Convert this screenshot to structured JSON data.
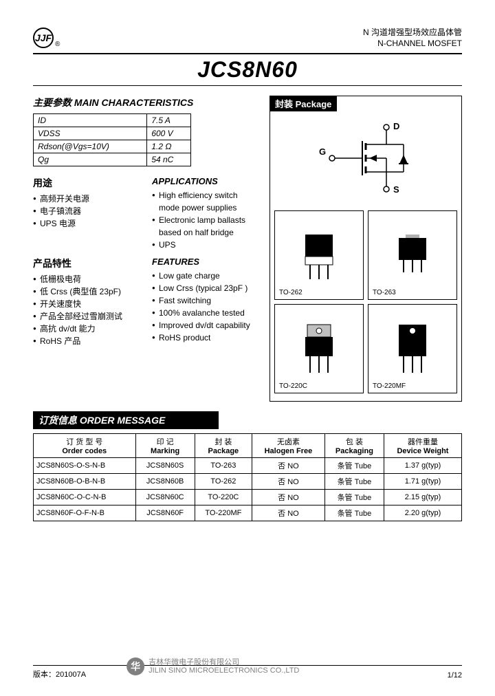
{
  "header": {
    "logo_text": "JJF",
    "reg": "®",
    "subtitle_cn": "N 沟道增强型场效应晶体管",
    "subtitle_en": "N-CHANNEL MOSFET"
  },
  "title": "JCS8N60",
  "main_chars": {
    "heading": "主要参数    MAIN  CHARACTERISTICS",
    "rows": [
      {
        "param": "ID",
        "value": "7.5 A"
      },
      {
        "param": "VDSS",
        "value": "600 V"
      },
      {
        "param": "Rdson(@Vgs=10V)",
        "value": "1.2 Ω"
      },
      {
        "param": "Qg",
        "value": "54 nC"
      }
    ]
  },
  "applications": {
    "cn_heading": "用途",
    "en_heading": "APPLICATIONS",
    "cn_items": [
      "高频开关电源",
      "电子镇流器",
      "UPS 电源"
    ],
    "en_items": [
      "High efficiency switch mode power supplies",
      "Electronic lamp ballasts based on half bridge",
      "UPS"
    ]
  },
  "features": {
    "cn_heading": "产品特性",
    "en_heading": "FEATURES",
    "cn_items": [
      "低栅极电荷",
      "低 Crss (典型值 23pF)",
      "开关速度快",
      "产品全部经过雪崩测试",
      "高抗 dv/dt 能力",
      "RoHS 产品"
    ],
    "en_items": [
      "Low gate charge",
      "Low Crss (typical 23pF )",
      "Fast switching",
      "100% avalanche tested",
      "Improved dv/dt capability",
      "RoHS product"
    ]
  },
  "package": {
    "label": "封装 Package",
    "symbol_labels": {
      "d": "D",
      "g": "G",
      "s": "S"
    },
    "items": [
      "TO-262",
      "TO-263",
      "TO-220C",
      "TO-220MF"
    ]
  },
  "order": {
    "heading": "订货信息  ORDER MESSAGE",
    "columns": [
      {
        "cn": "订 货 型 号",
        "en": "Order codes"
      },
      {
        "cn": "印    记",
        "en": "Marking"
      },
      {
        "cn": "封    装",
        "en": "Package"
      },
      {
        "cn": "无卤素",
        "en": "Halogen Free"
      },
      {
        "cn": "包    装",
        "en": "Packaging"
      },
      {
        "cn": "器件重量",
        "en": "Device Weight"
      }
    ],
    "rows": [
      [
        "JCS8N60S-O-S-N-B",
        "JCS8N60S",
        "TO-263",
        "否   NO",
        "条管 Tube",
        "1.37 g(typ)"
      ],
      [
        "JCS8N60B-O-B-N-B",
        "JCS8N60B",
        "TO-262",
        "否   NO",
        "条管 Tube",
        "1.71 g(typ)"
      ],
      [
        "JCS8N60C-O-C-N-B",
        "JCS8N60C",
        "TO-220C",
        "否   NO",
        "条管 Tube",
        "2.15 g(typ)"
      ],
      [
        "JCS8N60F-O-F-N-B",
        "JCS8N60F",
        "TO-220MF",
        "否   NO",
        "条管 Tube",
        "2.20 g(typ)"
      ]
    ]
  },
  "footer": {
    "version": "版本：201007A",
    "company_cn": "吉林华微电子股份有限公司",
    "company_en": "JILIN SINO MICROELECTRONICS CO.,LTD",
    "page": "1/12",
    "logo_glyph": "华"
  },
  "colors": {
    "black": "#000000",
    "white": "#ffffff",
    "gray": "#808080"
  }
}
